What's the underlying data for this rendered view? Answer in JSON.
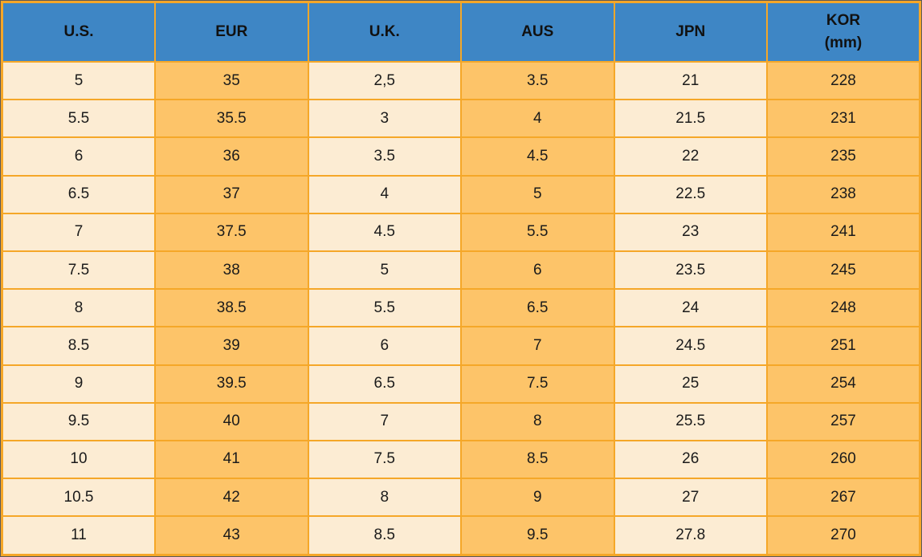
{
  "chart_data": {
    "type": "table",
    "columns": [
      {
        "label": "U.S."
      },
      {
        "label": "EUR"
      },
      {
        "label": "U.K."
      },
      {
        "label": "AUS"
      },
      {
        "label": "JPN"
      },
      {
        "label": "KOR",
        "sublabel": "(mm)"
      }
    ],
    "rows": [
      [
        "5",
        "35",
        "2,5",
        "3.5",
        "21",
        "228"
      ],
      [
        "5.5",
        "35.5",
        "3",
        "4",
        "21.5",
        "231"
      ],
      [
        "6",
        "36",
        "3.5",
        "4.5",
        "22",
        "235"
      ],
      [
        "6.5",
        "37",
        "4",
        "5",
        "22.5",
        "238"
      ],
      [
        "7",
        "37.5",
        "4.5",
        "5.5",
        "23",
        "241"
      ],
      [
        "7.5",
        "38",
        "5",
        "6",
        "23.5",
        "245"
      ],
      [
        "8",
        "38.5",
        "5.5",
        "6.5",
        "24",
        "248"
      ],
      [
        "8.5",
        "39",
        "6",
        "7",
        "24.5",
        "251"
      ],
      [
        "9",
        "39.5",
        "6.5",
        "7.5",
        "25",
        "254"
      ],
      [
        "9.5",
        "40",
        "7",
        "8",
        "25.5",
        "257"
      ],
      [
        "10",
        "41",
        "7.5",
        "8.5",
        "26",
        "260"
      ],
      [
        "10.5",
        "42",
        "8",
        "9",
        "27",
        "267"
      ],
      [
        "11",
        "43",
        "8.5",
        "9.5",
        "27.8",
        "270"
      ]
    ]
  },
  "colors": {
    "header_bg": "#3e86c5",
    "header_text": "#111111",
    "cell_light": "#fcecd3",
    "cell_orange": "#fdc469",
    "border": "#f5a728",
    "outer_line": "#5a5a5a",
    "cell_text": "#1b1b1b"
  }
}
